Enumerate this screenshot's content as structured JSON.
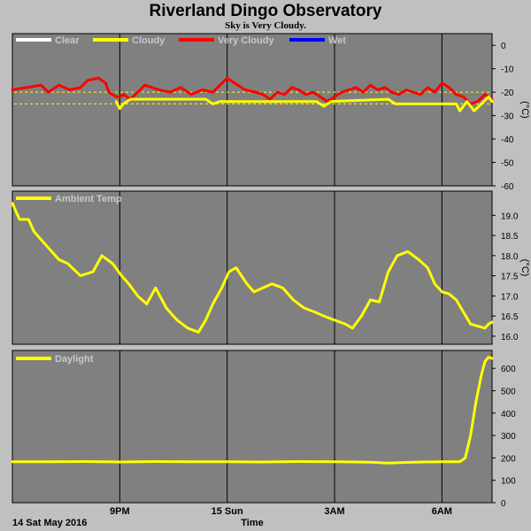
{
  "title": "Riverland Dingo Observatory",
  "subtitle": "Sky is Very Cloudy.",
  "footer": {
    "date_label": "14 Sat May 2016",
    "x_axis_label": "Time"
  },
  "colors": {
    "page_bg": "#c0c0c0",
    "plot_bg": "#808080",
    "grid": "#000000",
    "clear": "#ffffff",
    "cloudy": "#ffff00",
    "very_cloudy": "#ff0000",
    "wet": "#0000ff",
    "ambient": "#ffff00",
    "daylight": "#ffff00",
    "threshold": "#ffff00"
  },
  "chart_data": [
    {
      "id": "sky",
      "type": "line",
      "legend": [
        "Clear",
        "Cloudy",
        "Very Cloudy",
        "Wet"
      ],
      "unit": "°C",
      "ylim": [
        -60,
        5
      ],
      "yticks": [
        0,
        -10,
        -20,
        -30,
        -40,
        -50,
        -60
      ],
      "xlim": [
        18,
        31.4
      ],
      "xticks": [
        {
          "x": 21,
          "label": "9PM"
        },
        {
          "x": 24,
          "label": "15 Sun"
        },
        {
          "x": 27,
          "label": "3AM"
        },
        {
          "x": 30,
          "label": "6AM"
        }
      ],
      "grid": true,
      "threshold_lines": [
        -20,
        -25
      ],
      "series": [
        {
          "name": "Very Cloudy",
          "color": "#ff0000",
          "x": [
            18.0,
            18.4,
            18.8,
            19.0,
            19.3,
            19.6,
            19.9,
            20.1,
            20.4,
            20.6,
            20.7,
            20.9,
            21.0,
            21.1,
            21.3,
            21.5,
            21.7,
            21.9,
            22.1,
            22.4,
            22.7,
            23.0,
            23.3,
            23.6,
            23.8,
            24.0,
            24.2,
            24.5,
            24.8,
            25.0,
            25.2,
            25.4,
            25.6,
            25.8,
            26.0,
            26.2,
            26.4,
            26.6,
            26.8,
            27.0,
            27.2,
            27.4,
            27.6,
            27.8,
            28.0,
            28.2,
            28.4,
            28.6,
            28.8,
            29.0,
            29.2,
            29.4,
            29.6,
            29.8,
            30.0,
            30.2,
            30.4,
            30.6,
            30.8,
            31.0,
            31.2,
            31.4
          ],
          "y": [
            -19,
            -18,
            -17,
            -20,
            -17,
            -19,
            -18,
            -15,
            -14,
            -16,
            -20,
            -22,
            -22,
            -21,
            -23,
            -20,
            -17,
            -18,
            -19,
            -20,
            -18,
            -21,
            -19,
            -20,
            -17,
            -14,
            -16,
            -19,
            -20,
            -21,
            -23,
            -20,
            -21,
            -18,
            -19,
            -21,
            -20,
            -22,
            -24,
            -22,
            -20,
            -19,
            -18,
            -20,
            -17,
            -19,
            -18,
            -20,
            -21,
            -19,
            -20,
            -21,
            -18,
            -20,
            -16,
            -18,
            -21,
            -22,
            -25,
            -24,
            -21,
            -23
          ]
        },
        {
          "name": "Cloudy",
          "color": "#ffff00",
          "x": [
            20.9,
            21.0,
            21.1,
            21.3,
            23.4,
            23.6,
            23.8,
            24.0,
            26.5,
            26.7,
            26.9,
            28.5,
            28.7,
            30.4,
            30.5,
            30.7,
            30.9,
            31.1,
            31.3,
            31.4
          ],
          "y": [
            -24,
            -27,
            -25,
            -23,
            -23,
            -25,
            -24,
            -24,
            -24,
            -26,
            -24,
            -23,
            -25,
            -25,
            -28,
            -24,
            -28,
            -25,
            -22,
            -24
          ]
        },
        {
          "name": "Clear",
          "color": "#ffffff",
          "x": [],
          "y": []
        },
        {
          "name": "Wet",
          "color": "#0000ff",
          "x": [],
          "y": []
        }
      ]
    },
    {
      "id": "ambient",
      "type": "line",
      "legend": [
        "Ambient Temp"
      ],
      "unit": "°C",
      "ylim": [
        15.8,
        19.6
      ],
      "yticks": [
        16.0,
        16.5,
        17.0,
        17.5,
        18.0,
        18.5,
        19.0
      ],
      "xlim": [
        18,
        31.4
      ],
      "xticks": [
        {
          "x": 21,
          "label": "9PM"
        },
        {
          "x": 24,
          "label": "15 Sun"
        },
        {
          "x": 27,
          "label": "3AM"
        },
        {
          "x": 30,
          "label": "6AM"
        }
      ],
      "grid": true,
      "series": [
        {
          "name": "Ambient Temp",
          "color": "#ffff00",
          "x": [
            18.0,
            18.1,
            18.2,
            18.45,
            18.6,
            18.9,
            19.3,
            19.55,
            19.9,
            20.25,
            20.5,
            20.8,
            21.05,
            21.25,
            21.5,
            21.75,
            22.0,
            22.3,
            22.6,
            22.9,
            23.2,
            23.4,
            23.6,
            23.85,
            24.05,
            24.25,
            24.55,
            24.75,
            25.0,
            25.25,
            25.55,
            25.85,
            26.15,
            26.45,
            26.7,
            27.0,
            27.3,
            27.5,
            27.75,
            28.0,
            28.25,
            28.5,
            28.75,
            29.05,
            29.35,
            29.6,
            29.8,
            30.0,
            30.2,
            30.4,
            30.6,
            30.8,
            31.0,
            31.2,
            31.3,
            31.4
          ],
          "y": [
            19.3,
            19.1,
            18.9,
            18.9,
            18.6,
            18.3,
            17.9,
            17.8,
            17.5,
            17.6,
            18.0,
            17.8,
            17.5,
            17.3,
            17.0,
            16.8,
            17.2,
            16.7,
            16.4,
            16.2,
            16.1,
            16.4,
            16.8,
            17.2,
            17.6,
            17.7,
            17.3,
            17.1,
            17.2,
            17.3,
            17.2,
            16.9,
            16.7,
            16.6,
            16.5,
            16.4,
            16.3,
            16.2,
            16.5,
            16.9,
            16.85,
            17.6,
            18.0,
            18.1,
            17.9,
            17.7,
            17.3,
            17.1,
            17.05,
            16.9,
            16.6,
            16.3,
            16.25,
            16.2,
            16.3,
            16.35
          ]
        }
      ]
    },
    {
      "id": "daylight",
      "type": "line",
      "legend": [
        "Daylight"
      ],
      "unit": "",
      "ylim": [
        0,
        680
      ],
      "yticks": [
        0,
        100,
        200,
        300,
        400,
        500,
        600
      ],
      "xlim": [
        18,
        31.4
      ],
      "xticks": [
        {
          "x": 21,
          "label": "9PM"
        },
        {
          "x": 24,
          "label": "15 Sun"
        },
        {
          "x": 27,
          "label": "3AM"
        },
        {
          "x": 30,
          "label": "6AM"
        }
      ],
      "grid": true,
      "series": [
        {
          "name": "Daylight",
          "color": "#ffff00",
          "x": [
            18.0,
            19.0,
            20.0,
            21.0,
            22.0,
            23.0,
            24.0,
            25.0,
            26.0,
            27.0,
            28.0,
            28.5,
            29.0,
            29.5,
            30.0,
            30.5,
            30.65,
            30.8,
            30.95,
            31.1,
            31.2,
            31.3,
            31.4
          ],
          "y": [
            183,
            183,
            184,
            182,
            184,
            183,
            183,
            182,
            184,
            183,
            181,
            177,
            180,
            182,
            183,
            183,
            200,
            300,
            450,
            570,
            630,
            650,
            645
          ]
        }
      ]
    }
  ]
}
